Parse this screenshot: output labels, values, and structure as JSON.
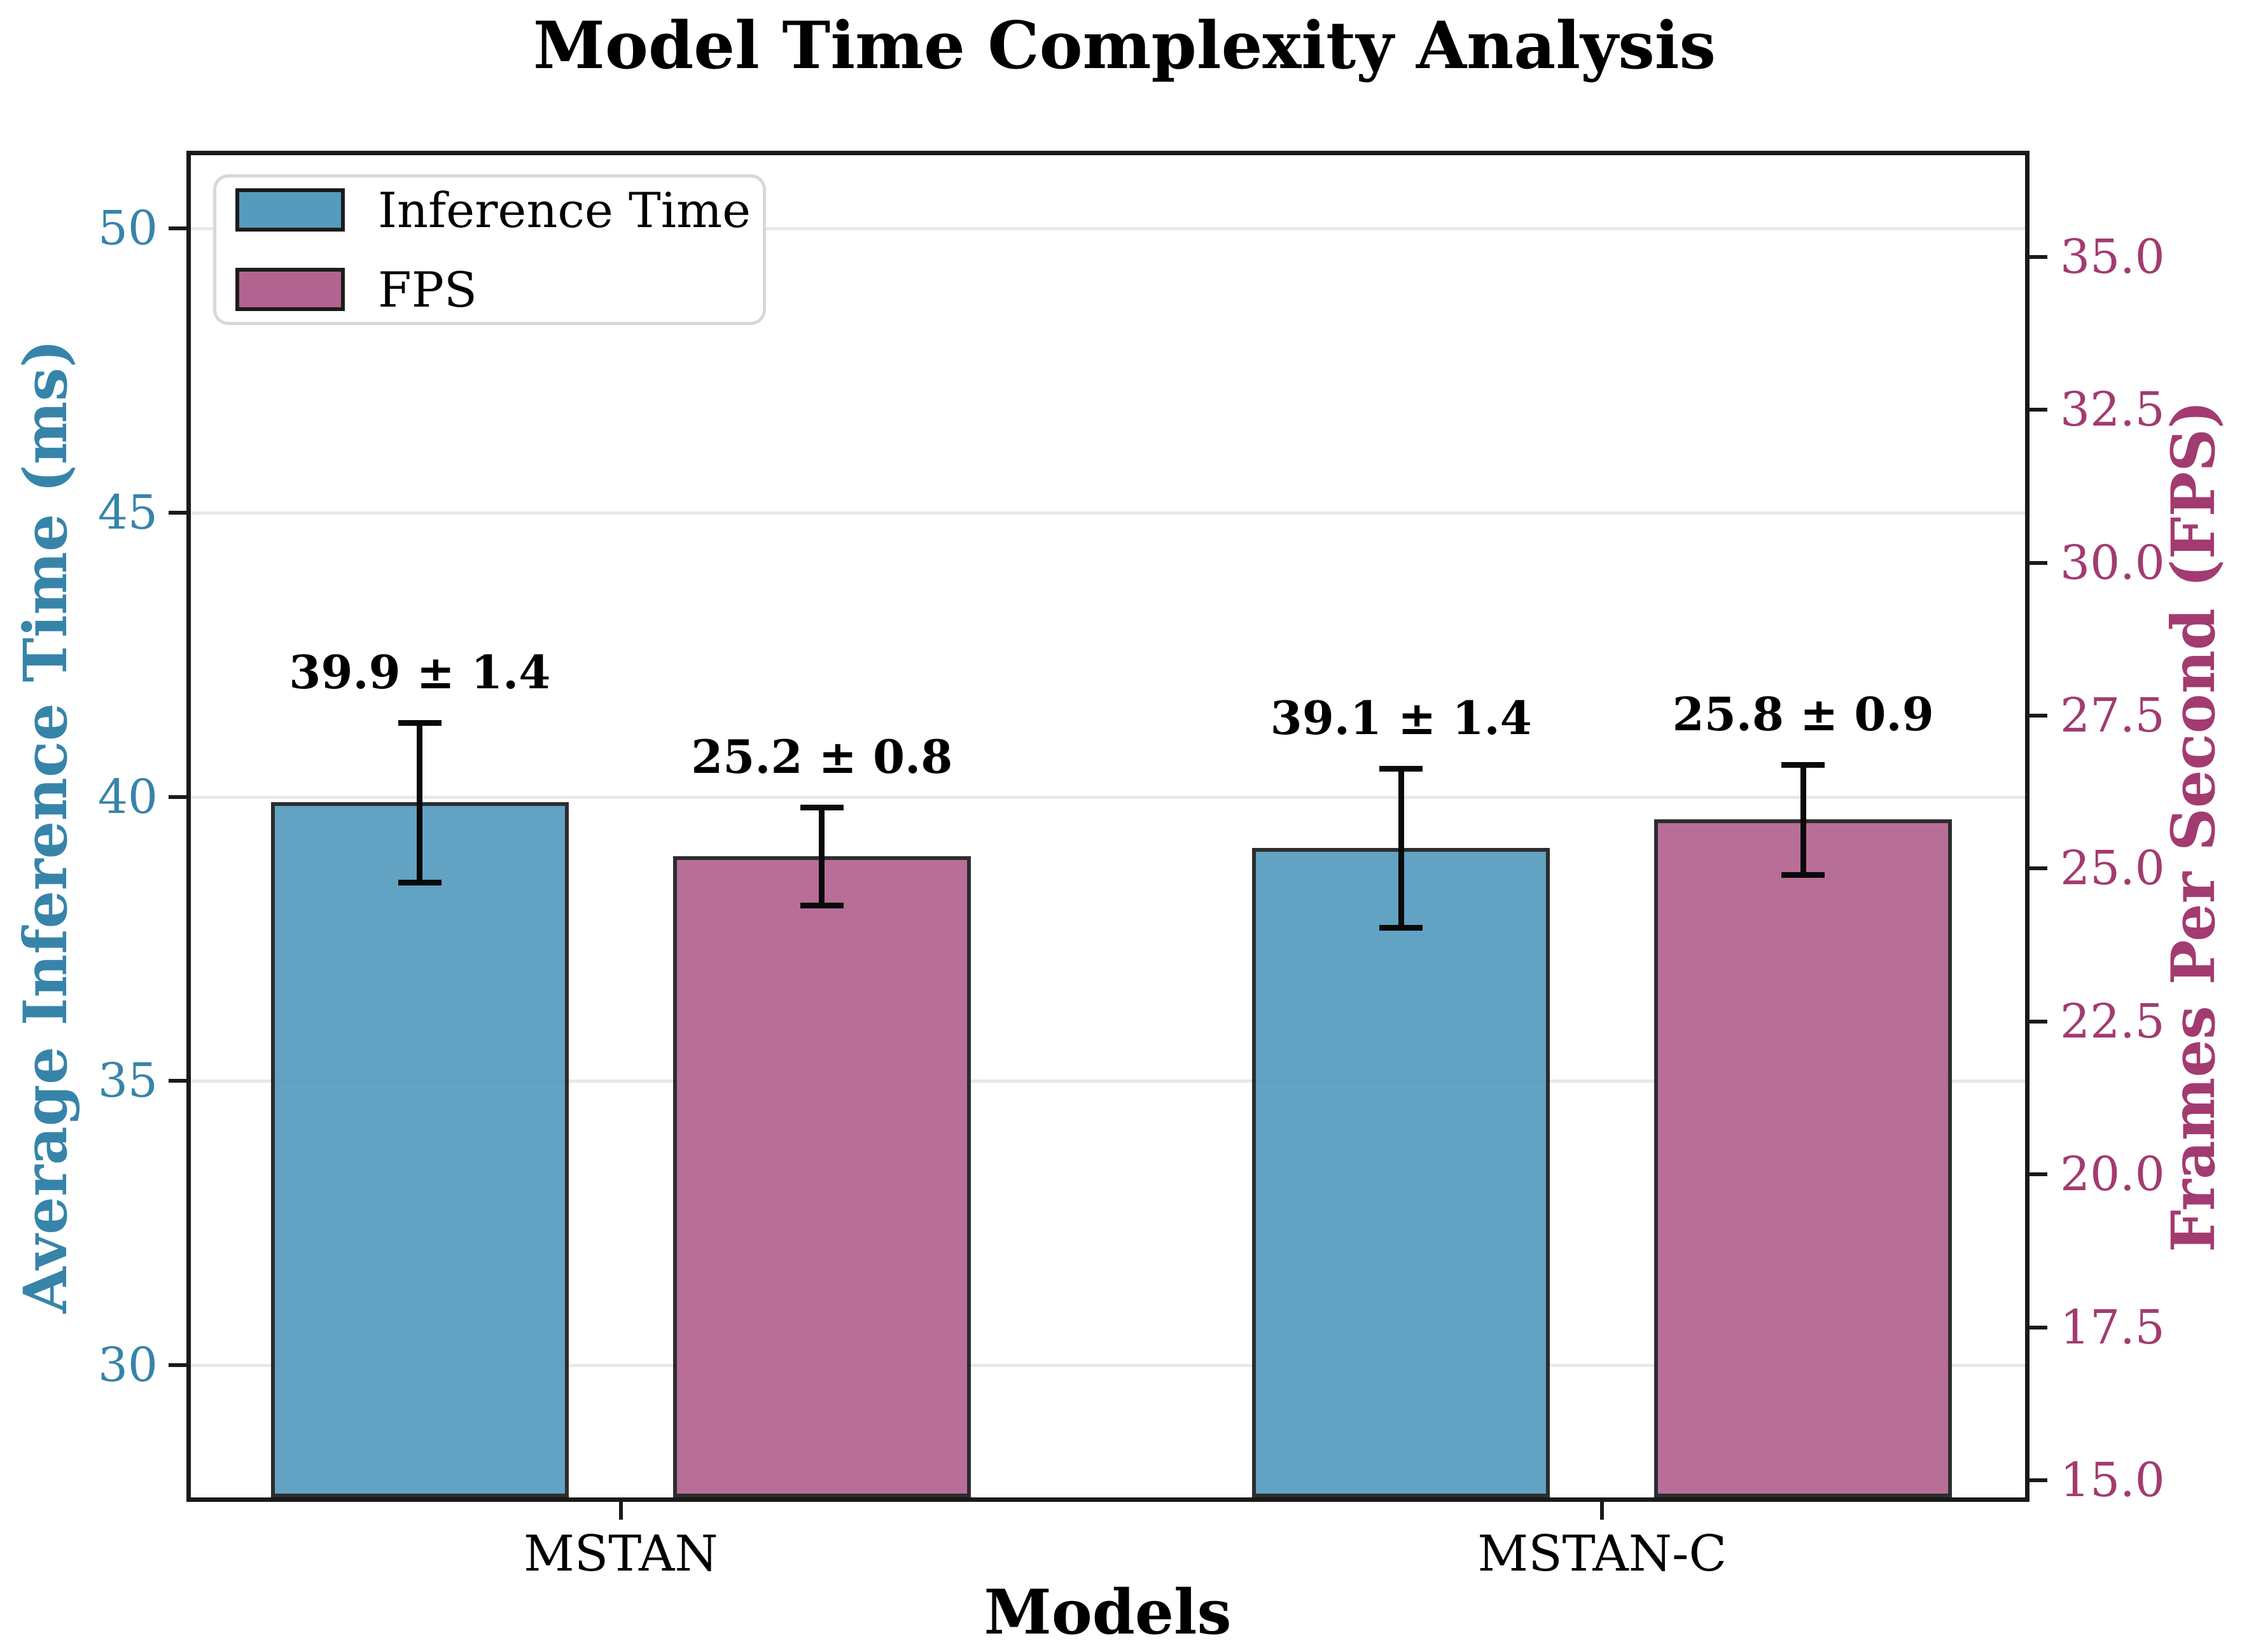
{
  "title": "Model Time Complexity Analysis",
  "chart_data": {
    "type": "bar",
    "title": "Model Time Complexity Analysis",
    "xlabel": "Models",
    "categories": [
      "MSTAN",
      "MSTAN-C"
    ],
    "series": [
      {
        "name": "Inference Time",
        "axis": "left",
        "color": "#559BBE",
        "values": [
          39.9,
          39.1
        ],
        "errors": [
          1.4,
          1.4
        ],
        "annotations": [
          "39.9 ± 1.4",
          "39.1 ± 1.4"
        ]
      },
      {
        "name": "FPS",
        "axis": "right",
        "color": "#B3638F",
        "values": [
          25.2,
          25.8
        ],
        "errors": [
          0.8,
          0.9
        ],
        "annotations": [
          "25.2 ± 0.8",
          "25.8 ± 0.9"
        ]
      }
    ],
    "left_axis": {
      "label": "Average Inference Time (ms)",
      "color": "#3784AA",
      "ticks": [
        30,
        35,
        40,
        45,
        50
      ],
      "tick_labels": [
        "30",
        "35",
        "40",
        "45",
        "50"
      ],
      "range": [
        27.67,
        51.29
      ]
    },
    "right_axis": {
      "label": "Frames Per Second (FPS)",
      "color": "#A23B70",
      "ticks": [
        15.0,
        17.5,
        20.0,
        22.5,
        25.0,
        27.5,
        30.0,
        32.5,
        35.0
      ],
      "tick_labels": [
        "15.0",
        "17.5",
        "20.0",
        "22.5",
        "25.0",
        "27.5",
        "30.0",
        "32.5",
        "35.0"
      ],
      "range": [
        14.72,
        36.66
      ]
    },
    "legend": {
      "position": "upper left",
      "entries": [
        "Inference Time",
        "FPS"
      ]
    },
    "grid": true,
    "bar_edge_color": "#1c1c1c",
    "error_bar_color": "#0a0a0a",
    "background_color": "#ffffff"
  }
}
